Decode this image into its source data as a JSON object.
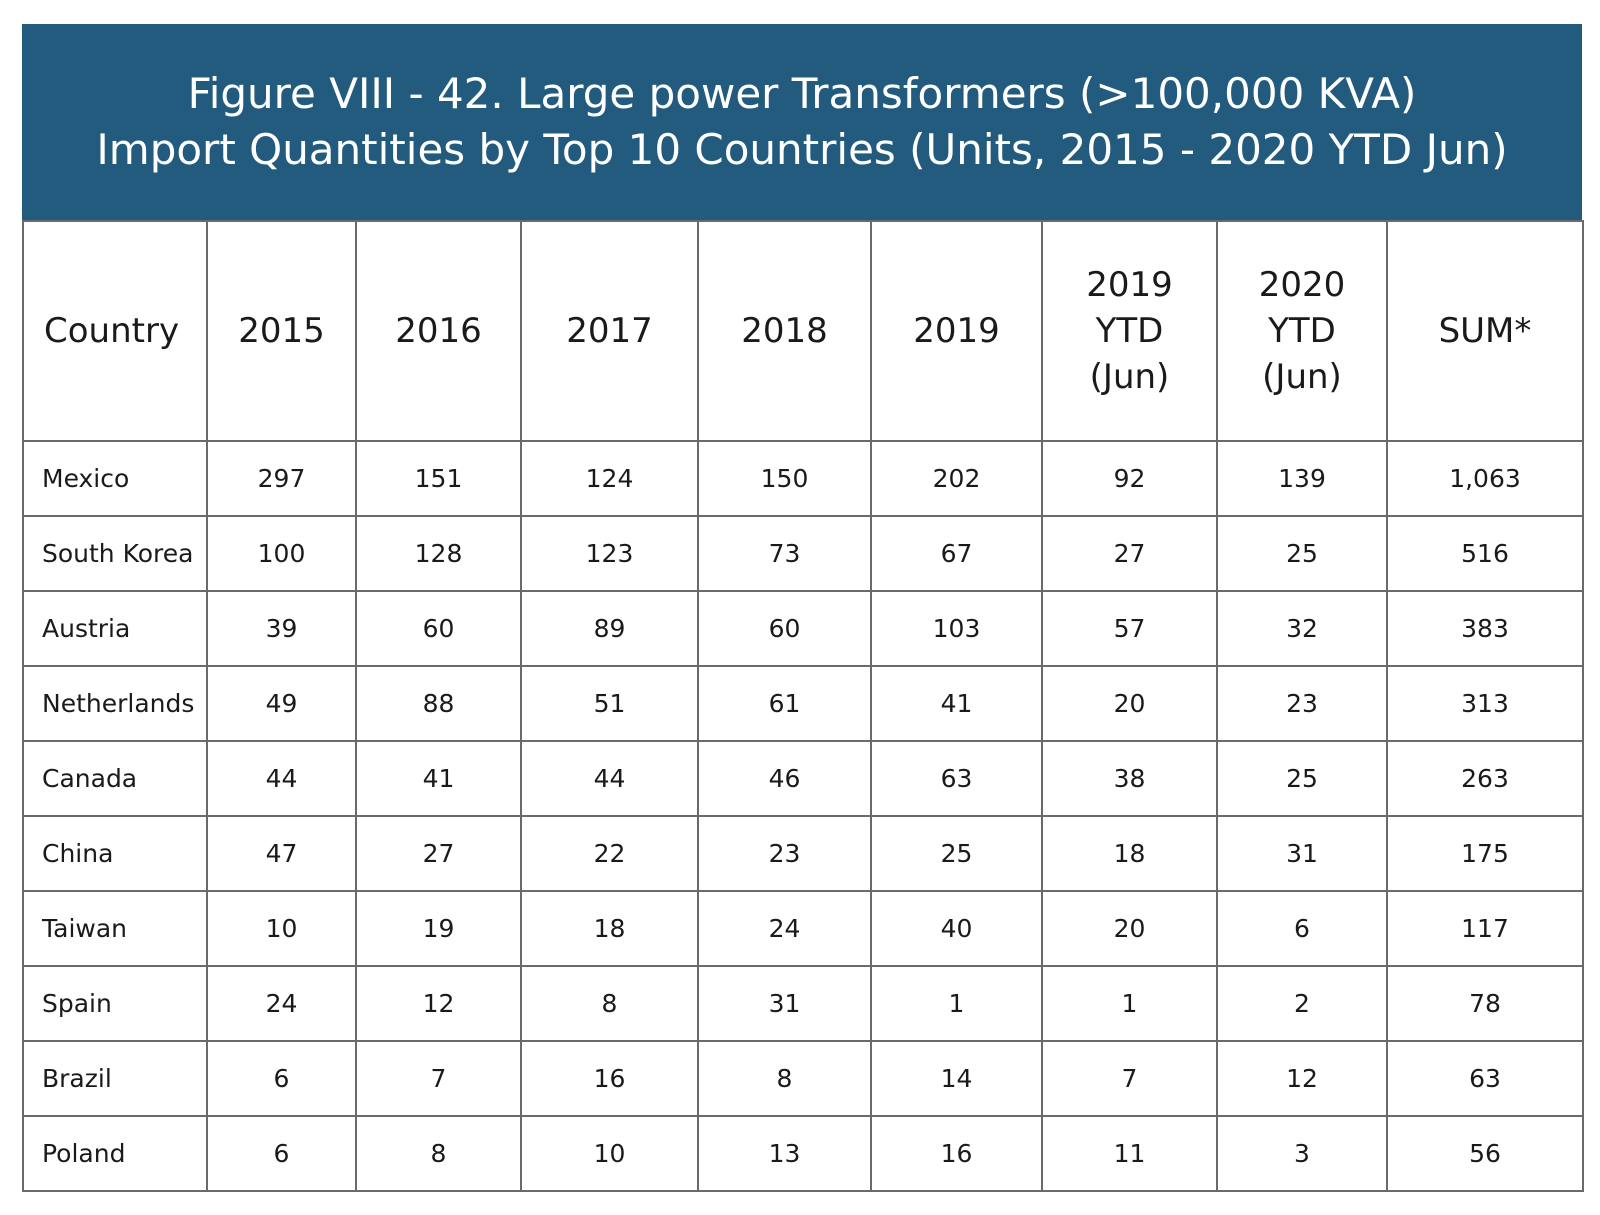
{
  "chart_data": {
    "type": "table",
    "title_lines": [
      "Figure VIII - 42. Large power Transformers (>100,000 KVA)",
      "Import Quantities by Top 10 Countries (Units, 2015 - 2020 YTD Jun)"
    ],
    "columns": [
      [
        "Country"
      ],
      [
        "2015"
      ],
      [
        "2016"
      ],
      [
        "2017"
      ],
      [
        "2018"
      ],
      [
        "2019"
      ],
      [
        "2019",
        "YTD",
        "(Jun)"
      ],
      [
        "2020",
        "YTD",
        "(Jun)"
      ],
      [
        "SUM*"
      ]
    ],
    "rows": [
      [
        "Mexico",
        "297",
        "151",
        "124",
        "150",
        "202",
        "92",
        "139",
        "1,063"
      ],
      [
        "South Korea",
        "100",
        "128",
        "123",
        "73",
        "67",
        "27",
        "25",
        "516"
      ],
      [
        "Austria",
        "39",
        "60",
        "89",
        "60",
        "103",
        "57",
        "32",
        "383"
      ],
      [
        "Netherlands",
        "49",
        "88",
        "51",
        "61",
        "41",
        "20",
        "23",
        "313"
      ],
      [
        "Canada",
        "44",
        "41",
        "44",
        "46",
        "63",
        "38",
        "25",
        "263"
      ],
      [
        "China",
        "47",
        "27",
        "22",
        "23",
        "25",
        "18",
        "31",
        "175"
      ],
      [
        "Taiwan",
        "10",
        "19",
        "18",
        "24",
        "40",
        "20",
        "6",
        "117"
      ],
      [
        "Spain",
        "24",
        "12",
        "8",
        "31",
        "1",
        "1",
        "2",
        "78"
      ],
      [
        "Brazil",
        "6",
        "7",
        "16",
        "8",
        "14",
        "7",
        "12",
        "63"
      ],
      [
        "Poland",
        "6",
        "8",
        "10",
        "13",
        "16",
        "11",
        "3",
        "56"
      ]
    ]
  },
  "colors": {
    "title_background": "#235b7e",
    "title_text": "#ffffff",
    "grid_line": "#6a6a6a"
  }
}
